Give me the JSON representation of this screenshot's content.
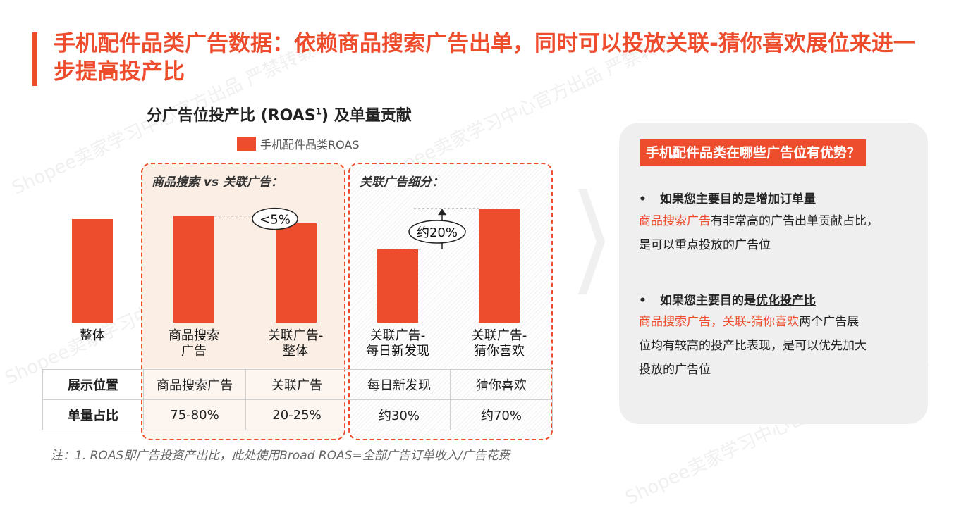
{
  "header": {
    "title": "手机配件品类广告数据：依赖商品搜索广告出单，同时可以投放关联-猜你喜欢展位来进一步提高投产比"
  },
  "chart_data": {
    "type": "bar",
    "title": "分广告位投产比 (ROAS",
    "title_sup": "1",
    "title_suffix": ") 及单量贡献",
    "legend": "手机配件品类ROAS",
    "categories": [
      "整体",
      "商品搜索广告",
      "关联广告-整体",
      "关联广告-每日新发现",
      "关联广告-猜你喜欢"
    ],
    "category_lines": [
      [
        "整体"
      ],
      [
        "商品搜索",
        "广告"
      ],
      [
        "关联广告-",
        "整体"
      ],
      [
        "关联广告-",
        "每日新发现"
      ],
      [
        "关联广告-",
        "猜你喜欢"
      ]
    ],
    "series": [
      {
        "name": "手机配件品类ROAS",
        "values": [
          1.0,
          1.03,
          0.96,
          0.71,
          1.1
        ],
        "color": "#ee4d2d"
      }
    ],
    "yaxis_shown": false,
    "annotations": [
      "<5%",
      "约20%"
    ],
    "group_labels": [
      "商品搜索 vs 关联广告：",
      "关联广告细分："
    ]
  },
  "table": {
    "rows": [
      {
        "header": "展示位置",
        "cells": [
          "商品搜索广告",
          "关联广告",
          "每日新发现",
          "猜你喜欢"
        ]
      },
      {
        "header": "单量占比",
        "cells": [
          "75-80%",
          "20-25%",
          "约30%",
          "约70%"
        ]
      }
    ]
  },
  "footnote": "注：1. ROAS即广告投资产出比，此处使用Broad ROAS=全部广告订单收入/广告花费",
  "panel": {
    "heading": "手机配件品类在哪些广告位有优势？",
    "points": [
      {
        "bullet": "•",
        "lead": "如果您主要目的是",
        "goal": "增加订单量",
        "highlight": "商品搜索广告",
        "text1": "有非常高的广告出单贡献占比，",
        "text2": "是可以重点投放的广告位"
      },
      {
        "bullet": "•",
        "lead": "如果您主要目的是",
        "goal": "优化投产比",
        "highlight": "商品搜索广告，关联-猜你喜欢",
        "text1": "两个广告展",
        "text2": "位均有较高的投产比表现，是可以优先加大",
        "text3": "投放的广告位"
      }
    ]
  },
  "watermark": [
    "Shopee卖家学习中心官方出品 严禁转载"
  ],
  "colors": {
    "accent": "#ee4d2d",
    "panel_bg": "#efefef"
  }
}
